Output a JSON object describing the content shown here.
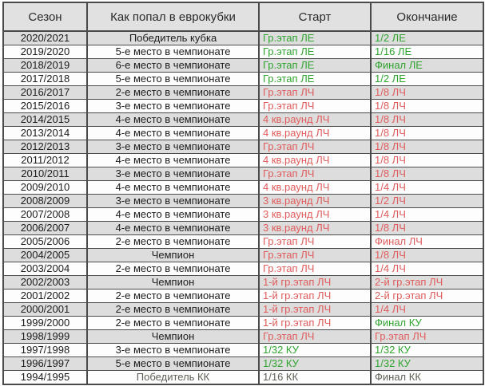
{
  "colors": {
    "black": "#1c1c1c",
    "green": "#2fa52f",
    "red": "#e05c5c",
    "gray": "#5d6157",
    "border": "#4a4a4a",
    "header_bg": "#e1e1e1",
    "shaded_row_bg": "#dddddd",
    "plain_row_bg": "#fdfdfd"
  },
  "chart_data": {
    "type": "table",
    "title": "",
    "columns": [
      "Сезон",
      "Как попал в еврокубки",
      "Старт",
      "Окончание"
    ],
    "rows": [
      {
        "season": "2020/2021",
        "qualified": "Победитель кубка",
        "qualified_color": "black",
        "start": "Гр.этап ЛЕ",
        "start_color": "green",
        "finish": "1/2 ЛЕ",
        "finish_color": "green"
      },
      {
        "season": "2019/2020",
        "qualified": "5-е место в чемпионате",
        "qualified_color": "black",
        "start": "Гр.этап ЛЕ",
        "start_color": "green",
        "finish": "1/16 ЛЕ",
        "finish_color": "green"
      },
      {
        "season": "2018/2019",
        "qualified": "6-е место в чемпионате",
        "qualified_color": "black",
        "start": "Гр.этап ЛЕ",
        "start_color": "green",
        "finish": "Финал ЛЕ",
        "finish_color": "green"
      },
      {
        "season": "2017/2018",
        "qualified": "5-е место в чемпионате",
        "qualified_color": "black",
        "start": "Гр.этап ЛЕ",
        "start_color": "green",
        "finish": "1/2 ЛЕ",
        "finish_color": "green"
      },
      {
        "season": "2016/2017",
        "qualified": "2-е место в чемпионате",
        "qualified_color": "black",
        "start": "Гр.этап ЛЧ",
        "start_color": "red",
        "finish": "1/8 ЛЧ",
        "finish_color": "red"
      },
      {
        "season": "2015/2016",
        "qualified": "3-е место в чемпионате",
        "qualified_color": "black",
        "start": "Гр.этап ЛЧ",
        "start_color": "red",
        "finish": "1/8 ЛЧ",
        "finish_color": "red"
      },
      {
        "season": "2014/2015",
        "qualified": "4-е место в чемпионате",
        "qualified_color": "black",
        "start": "4 кв.раунд ЛЧ",
        "start_color": "red",
        "finish": "1/8 ЛЧ",
        "finish_color": "red"
      },
      {
        "season": "2013/2014",
        "qualified": "4-е место в чемпионате",
        "qualified_color": "black",
        "start": "4 кв.раунд ЛЧ",
        "start_color": "red",
        "finish": "1/8 ЛЧ",
        "finish_color": "red"
      },
      {
        "season": "2012/2013",
        "qualified": "3-е место в чемпионате",
        "qualified_color": "black",
        "start": "Гр.этап ЛЧ",
        "start_color": "red",
        "finish": "1/8 ЛЧ",
        "finish_color": "red"
      },
      {
        "season": "2011/2012",
        "qualified": "4-е место в чемпионате",
        "qualified_color": "black",
        "start": "4 кв.раунд ЛЧ",
        "start_color": "red",
        "finish": "1/8 ЛЧ",
        "finish_color": "red"
      },
      {
        "season": "2010/2011",
        "qualified": "3-е место в чемпионате",
        "qualified_color": "black",
        "start": "Гр.этап ЛЧ",
        "start_color": "red",
        "finish": "1/8 ЛЧ",
        "finish_color": "red"
      },
      {
        "season": "2009/2010",
        "qualified": "4-е место в чемпионате",
        "qualified_color": "black",
        "start": "4 кв.раунд ЛЧ",
        "start_color": "red",
        "finish": "1/4 ЛЧ",
        "finish_color": "red"
      },
      {
        "season": "2008/2009",
        "qualified": "3-е место в чемпионате",
        "qualified_color": "black",
        "start": "3 кв.раунд ЛЧ",
        "start_color": "red",
        "finish": "1/2 ЛЧ",
        "finish_color": "red"
      },
      {
        "season": "2007/2008",
        "qualified": "4-е место в чемпионате",
        "qualified_color": "black",
        "start": "3 кв.раунд ЛЧ",
        "start_color": "red",
        "finish": "1/4 ЛЧ",
        "finish_color": "red"
      },
      {
        "season": "2006/2007",
        "qualified": "4-е место в чемпионате",
        "qualified_color": "black",
        "start": "3 кв.раунд ЛЧ",
        "start_color": "red",
        "finish": "1/8 ЛЧ",
        "finish_color": "red"
      },
      {
        "season": "2005/2006",
        "qualified": "2-е место в чемпионате",
        "qualified_color": "black",
        "start": "Гр.этап ЛЧ",
        "start_color": "red",
        "finish": "Финал ЛЧ",
        "finish_color": "red"
      },
      {
        "season": "2004/2005",
        "qualified": "Чемпион",
        "qualified_color": "black",
        "start": "Гр.этап ЛЧ",
        "start_color": "red",
        "finish": "1/8 ЛЧ",
        "finish_color": "red"
      },
      {
        "season": "2003/2004",
        "qualified": "2-е место в чемпионате",
        "qualified_color": "black",
        "start": "Гр.этап ЛЧ",
        "start_color": "red",
        "finish": "1/4 ЛЧ",
        "finish_color": "red"
      },
      {
        "season": "2002/2003",
        "qualified": "Чемпион",
        "qualified_color": "black",
        "start": "1-й гр.этап ЛЧ",
        "start_color": "red",
        "finish": "2-й гр.этап ЛЧ",
        "finish_color": "red"
      },
      {
        "season": "2001/2002",
        "qualified": "2-е место в чемпионате",
        "qualified_color": "black",
        "start": "1-й гр.этап ЛЧ",
        "start_color": "red",
        "finish": "2-й гр.этап ЛЧ",
        "finish_color": "red"
      },
      {
        "season": "2000/2001",
        "qualified": "2-е место в чемпионате",
        "qualified_color": "black",
        "start": "1-й гр.этап ЛЧ",
        "start_color": "red",
        "finish": "1/4 ЛЧ",
        "finish_color": "red"
      },
      {
        "season": "1999/2000",
        "qualified": "2-е место в чемпионате",
        "qualified_color": "black",
        "start": "1-й гр.этап ЛЧ",
        "start_color": "red",
        "finish": "Финал КУ",
        "finish_color": "green"
      },
      {
        "season": "1998/1999",
        "qualified": "Чемпион",
        "qualified_color": "black",
        "start": "Гр.этап ЛЧ",
        "start_color": "red",
        "finish": "Гр.этап ЛЧ",
        "finish_color": "red"
      },
      {
        "season": "1997/1998",
        "qualified": "3-е место в чемпионате",
        "qualified_color": "black",
        "start": "1/32 КУ",
        "start_color": "green",
        "finish": "1/32 КУ",
        "finish_color": "green"
      },
      {
        "season": "1996/1997",
        "qualified": "5-е место в чемпионате",
        "qualified_color": "black",
        "start": "1/32 КУ",
        "start_color": "green",
        "finish": "1/32 КУ",
        "finish_color": "green"
      },
      {
        "season": "1994/1995",
        "qualified": "Победитель КК",
        "qualified_color": "gray",
        "start": "1/16 КК",
        "start_color": "gray",
        "finish": "Финал КК",
        "finish_color": "gray"
      }
    ]
  }
}
